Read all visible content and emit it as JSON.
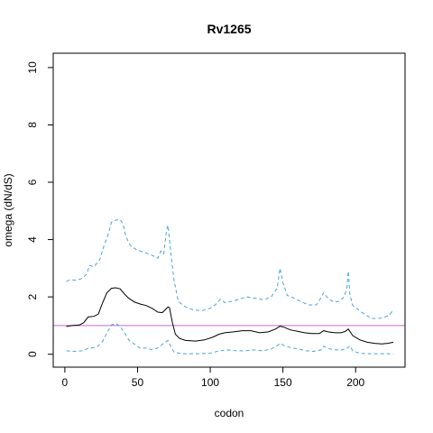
{
  "chart_data": {
    "type": "line",
    "title": "Rv1265",
    "xlabel": "codon",
    "ylabel": "omega (dN/dS)",
    "xlim": [
      -8,
      234
    ],
    "ylim": [
      -0.45,
      10.5
    ],
    "x_ticks": [
      0,
      50,
      100,
      150,
      200
    ],
    "y_ticks": [
      0,
      2,
      4,
      6,
      8,
      10
    ],
    "grid": false,
    "reference_line": {
      "y": 1,
      "color": "#cc66cc"
    },
    "series": [
      {
        "style": "solid",
        "color": "#000000",
        "points": [
          [
            1,
            0.97
          ],
          [
            5,
            1.0
          ],
          [
            10,
            1.02
          ],
          [
            13,
            1.1
          ],
          [
            16,
            1.3
          ],
          [
            20,
            1.32
          ],
          [
            23,
            1.4
          ],
          [
            26,
            1.8
          ],
          [
            29,
            2.15
          ],
          [
            32,
            2.3
          ],
          [
            35,
            2.32
          ],
          [
            38,
            2.28
          ],
          [
            41,
            2.1
          ],
          [
            44,
            1.95
          ],
          [
            48,
            1.82
          ],
          [
            52,
            1.75
          ],
          [
            56,
            1.7
          ],
          [
            60,
            1.6
          ],
          [
            64,
            1.47
          ],
          [
            67,
            1.45
          ],
          [
            69,
            1.55
          ],
          [
            71,
            1.65
          ],
          [
            72,
            1.62
          ],
          [
            74,
            1.1
          ],
          [
            76,
            0.7
          ],
          [
            79,
            0.55
          ],
          [
            83,
            0.48
          ],
          [
            90,
            0.46
          ],
          [
            96,
            0.5
          ],
          [
            102,
            0.6
          ],
          [
            106,
            0.7
          ],
          [
            110,
            0.75
          ],
          [
            116,
            0.78
          ],
          [
            122,
            0.82
          ],
          [
            128,
            0.82
          ],
          [
            134,
            0.75
          ],
          [
            140,
            0.78
          ],
          [
            145,
            0.88
          ],
          [
            148,
            0.98
          ],
          [
            151,
            0.94
          ],
          [
            155,
            0.85
          ],
          [
            160,
            0.8
          ],
          [
            165,
            0.75
          ],
          [
            170,
            0.72
          ],
          [
            175,
            0.72
          ],
          [
            178,
            0.82
          ],
          [
            181,
            0.78
          ],
          [
            186,
            0.75
          ],
          [
            190,
            0.75
          ],
          [
            193,
            0.8
          ],
          [
            195,
            0.88
          ],
          [
            198,
            0.65
          ],
          [
            203,
            0.5
          ],
          [
            208,
            0.42
          ],
          [
            213,
            0.38
          ],
          [
            218,
            0.36
          ],
          [
            222,
            0.38
          ],
          [
            226,
            0.42
          ]
        ]
      },
      {
        "style": "dashed",
        "color": "#4aa3df",
        "points": [
          [
            1,
            2.55
          ],
          [
            4,
            2.6
          ],
          [
            8,
            2.58
          ],
          [
            12,
            2.65
          ],
          [
            15,
            2.8
          ],
          [
            17,
            3.1
          ],
          [
            20,
            3.05
          ],
          [
            24,
            3.3
          ],
          [
            27,
            3.8
          ],
          [
            30,
            4.2
          ],
          [
            32,
            4.6
          ],
          [
            35,
            4.68
          ],
          [
            38,
            4.7
          ],
          [
            40,
            4.55
          ],
          [
            42,
            4.1
          ],
          [
            45,
            3.8
          ],
          [
            49,
            3.65
          ],
          [
            55,
            3.55
          ],
          [
            60,
            3.45
          ],
          [
            64,
            3.35
          ],
          [
            66,
            3.6
          ],
          [
            68,
            3.5
          ],
          [
            70,
            4.35
          ],
          [
            71,
            4.5
          ],
          [
            72,
            4.0
          ],
          [
            73,
            3.5
          ],
          [
            75,
            2.6
          ],
          [
            78,
            1.85
          ],
          [
            82,
            1.68
          ],
          [
            88,
            1.55
          ],
          [
            94,
            1.52
          ],
          [
            100,
            1.6
          ],
          [
            104,
            1.75
          ],
          [
            107,
            1.92
          ],
          [
            110,
            1.8
          ],
          [
            115,
            1.85
          ],
          [
            120,
            1.92
          ],
          [
            125,
            2.0
          ],
          [
            131,
            1.95
          ],
          [
            137,
            1.9
          ],
          [
            142,
            2.0
          ],
          [
            146,
            2.3
          ],
          [
            148,
            3.0
          ],
          [
            150,
            2.5
          ],
          [
            153,
            2.05
          ],
          [
            158,
            1.95
          ],
          [
            163,
            1.82
          ],
          [
            168,
            1.72
          ],
          [
            173,
            1.72
          ],
          [
            176,
            1.95
          ],
          [
            178,
            2.15
          ],
          [
            181,
            1.95
          ],
          [
            185,
            1.82
          ],
          [
            189,
            1.85
          ],
          [
            192,
            2.0
          ],
          [
            194,
            2.3
          ],
          [
            195,
            2.9
          ],
          [
            196,
            2.1
          ],
          [
            198,
            1.7
          ],
          [
            202,
            1.55
          ],
          [
            206,
            1.4
          ],
          [
            211,
            1.25
          ],
          [
            216,
            1.25
          ],
          [
            220,
            1.3
          ],
          [
            223,
            1.35
          ],
          [
            226,
            1.55
          ]
        ]
      },
      {
        "style": "dashed",
        "color": "#4aa3df",
        "points": [
          [
            1,
            0.12
          ],
          [
            6,
            0.1
          ],
          [
            12,
            0.12
          ],
          [
            16,
            0.2
          ],
          [
            22,
            0.25
          ],
          [
            26,
            0.45
          ],
          [
            29,
            0.75
          ],
          [
            32,
            1.02
          ],
          [
            35,
            1.08
          ],
          [
            38,
            0.98
          ],
          [
            41,
            0.75
          ],
          [
            44,
            0.5
          ],
          [
            48,
            0.35
          ],
          [
            52,
            0.2
          ],
          [
            56,
            0.22
          ],
          [
            60,
            0.15
          ],
          [
            64,
            0.22
          ],
          [
            67,
            0.35
          ],
          [
            70,
            0.45
          ],
          [
            71,
            0.48
          ],
          [
            73,
            0.25
          ],
          [
            75,
            0.08
          ],
          [
            80,
            0.02
          ],
          [
            90,
            0.02
          ],
          [
            100,
            0.03
          ],
          [
            106,
            0.12
          ],
          [
            112,
            0.15
          ],
          [
            118,
            0.12
          ],
          [
            124,
            0.12
          ],
          [
            130,
            0.15
          ],
          [
            136,
            0.12
          ],
          [
            142,
            0.18
          ],
          [
            146,
            0.3
          ],
          [
            148,
            0.38
          ],
          [
            151,
            0.3
          ],
          [
            156,
            0.22
          ],
          [
            161,
            0.18
          ],
          [
            166,
            0.12
          ],
          [
            171,
            0.1
          ],
          [
            176,
            0.15
          ],
          [
            178,
            0.28
          ],
          [
            181,
            0.2
          ],
          [
            186,
            0.15
          ],
          [
            191,
            0.15
          ],
          [
            194,
            0.2
          ],
          [
            196,
            0.3
          ],
          [
            198,
            0.12
          ],
          [
            203,
            0.03
          ],
          [
            210,
            0.02
          ],
          [
            218,
            0.02
          ],
          [
            226,
            0.02
          ]
        ]
      }
    ]
  }
}
